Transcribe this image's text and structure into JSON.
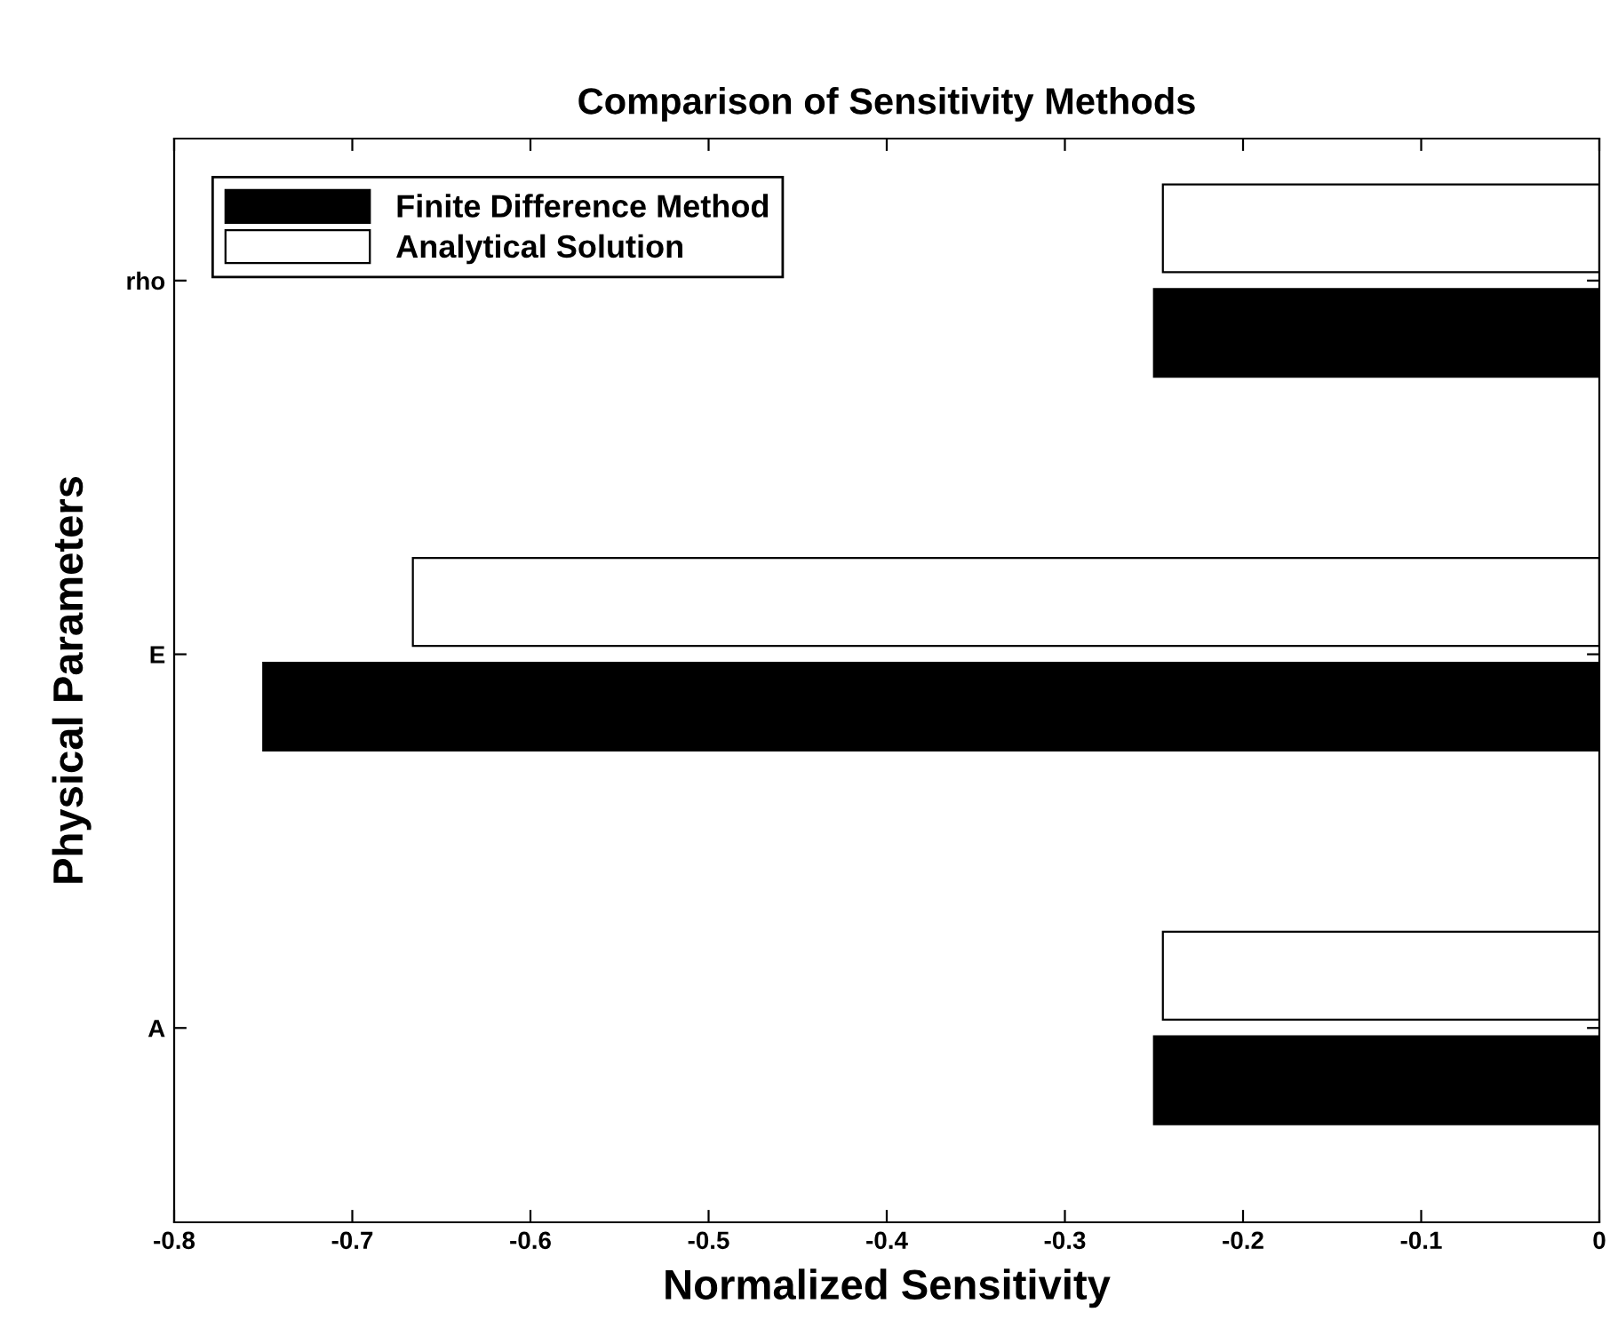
{
  "chart_data": {
    "type": "bar",
    "orientation": "horizontal",
    "title": "Comparison of Sensitivity Methods",
    "xlabel": "Normalized Sensitivity",
    "ylabel": "Physical Parameters",
    "categories": [
      "rho",
      "E",
      "A"
    ],
    "series": [
      {
        "name": "Finite Difference Method",
        "color": "#000000",
        "values": [
          -0.25,
          -0.75,
          -0.25
        ]
      },
      {
        "name": "Analytical Solution",
        "color": "#ffffff",
        "values": [
          -0.245,
          -0.666,
          -0.245
        ]
      }
    ],
    "xlim": [
      -0.8,
      0
    ],
    "xticks": [
      -0.8,
      -0.7,
      -0.6,
      -0.5,
      -0.4,
      -0.3,
      -0.2,
      -0.1,
      0
    ],
    "grid": false,
    "legend": "top left"
  }
}
